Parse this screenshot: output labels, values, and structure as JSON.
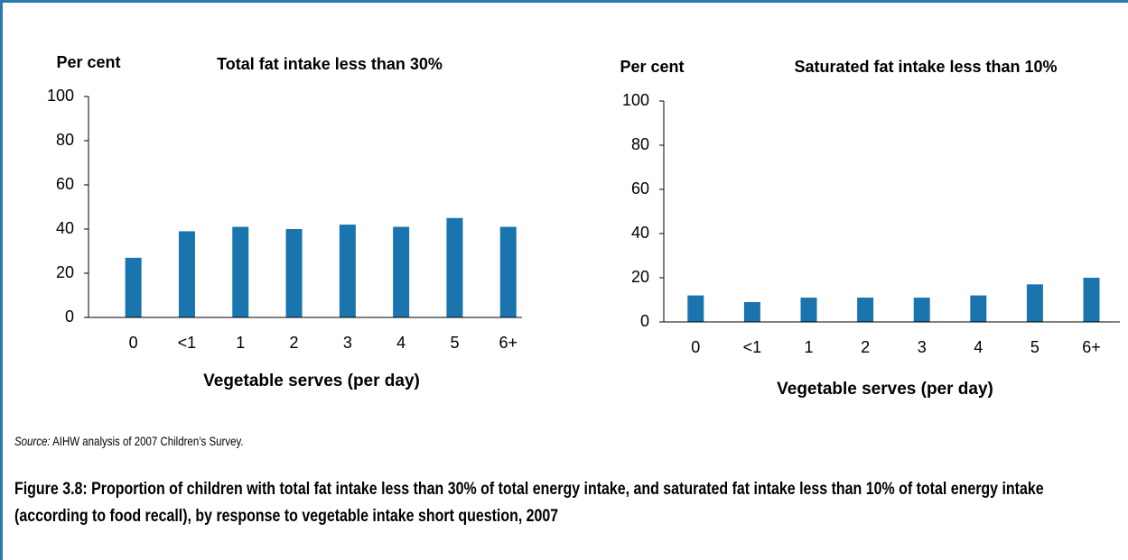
{
  "chart_data": [
    {
      "type": "bar",
      "y_label": "Per cent",
      "title": "Total fat intake less than 30%",
      "x_label": "Vegetable serves (per day)",
      "categories": [
        "0",
        "<1",
        "1",
        "2",
        "3",
        "4",
        "5",
        "6+"
      ],
      "values": [
        27,
        39,
        41,
        40,
        42,
        41,
        45,
        41
      ],
      "color": "#1a74ad",
      "ylim": [
        0,
        100
      ],
      "yticks": [
        0,
        20,
        40,
        60,
        80,
        100
      ]
    },
    {
      "type": "bar",
      "y_label": "Per cent",
      "title": "Saturated fat intake less than 10%",
      "x_label": "Vegetable serves (per day)",
      "categories": [
        "0",
        "<1",
        "1",
        "2",
        "3",
        "4",
        "5",
        "6+"
      ],
      "values": [
        12,
        9,
        11,
        11,
        11,
        12,
        17,
        20
      ],
      "color": "#1a74ad",
      "ylim": [
        0,
        100
      ],
      "yticks": [
        0,
        20,
        40,
        60,
        80,
        100
      ]
    }
  ],
  "source_label": "Source:",
  "source_text": "AIHW analysis of 2007 Children’s Survey.",
  "caption": "Figure 3.8: Proportion of children with total fat intake less than 30% of total energy intake, and saturated fat intake less than 10% of total energy intake (according to food recall), by response to vegetable intake short question, 2007"
}
